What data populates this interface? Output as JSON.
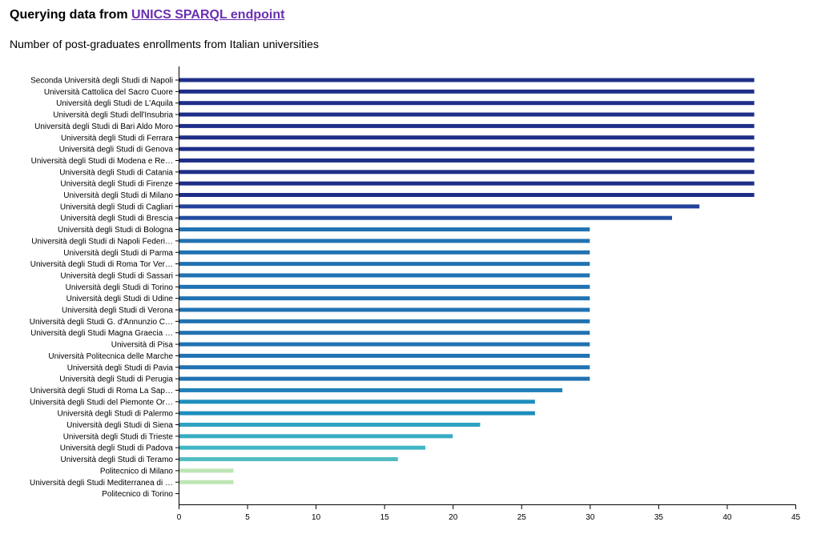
{
  "header": {
    "title_prefix": "Querying data from ",
    "link_text": "UNICS SPARQL endpoint"
  },
  "colors": {
    "link": "#6a2fb0",
    "axis": "#000000",
    "palette": "YlGnBu",
    "low": "#e0f3b2",
    "high": "#1d3585"
  },
  "chart_data": {
    "type": "bar",
    "orientation": "horizontal",
    "title": "Number of post-graduates enrollments from Italian universities",
    "xlabel": "",
    "ylabel": "",
    "xlim": [
      0,
      45
    ],
    "x_ticks": [
      0,
      5,
      10,
      15,
      20,
      25,
      30,
      35,
      40,
      45
    ],
    "grid": false,
    "legend": "none",
    "categories": [
      "Seconda Università degli Studi di Napoli",
      "Università Cattolica del Sacro Cuore",
      "Università degli Studi de L'Aquila",
      "Università degli Studi dell'Insubria",
      "Università degli Studi di Bari Aldo Moro",
      "Università degli Studi di Ferrara",
      "Università degli Studi di Genova",
      "Università degli Studi di Modena e Re…",
      "Università degli Studi di Catania",
      "Università degli Studi di Firenze",
      "Università degli Studi di Milano",
      "Università degli Studi di Cagliari",
      "Università degli Studi di Brescia",
      "Università degli Studi di Bologna",
      "Università degli Studi di Napoli Federi…",
      "Università degli Studi di Parma",
      "Università degli Studi di Roma Tor Ver…",
      "Università degli Studi di Sassari",
      "Università degli Studi di Torino",
      "Università degli Studi di Udine",
      "Università degli Studi di Verona",
      "Università degli Studi G. d'Annunzio C…",
      "Università degli Studi Magna Graecia …",
      "Università di Pisa",
      "Università Politecnica delle Marche",
      "Università degli Studi di Pavia",
      "Università degli Studi di Perugia",
      "Università degli Studi di Roma La Sap…",
      "Università degli Studi del Piemonte Or…",
      "Università degli Studi di Palermo",
      "Università degli Studi di Siena",
      "Università degli Studi di Trieste",
      "Università degli Studi di Padova",
      "Università degli Studi di Teramo",
      "Politecnico di Milano",
      "Università degli Studi Mediterranea di …",
      "Politecnico di Torino"
    ],
    "values": [
      42,
      42,
      42,
      42,
      42,
      42,
      42,
      42,
      42,
      42,
      42,
      38,
      36,
      30,
      30,
      30,
      30,
      30,
      30,
      30,
      30,
      30,
      30,
      30,
      30,
      30,
      30,
      28,
      26,
      26,
      22,
      20,
      18,
      16,
      4,
      4,
      0
    ]
  }
}
